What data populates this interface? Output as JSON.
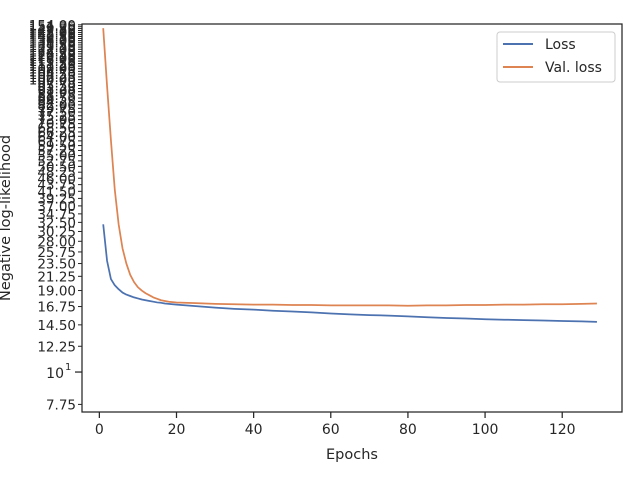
{
  "chart_data": {
    "type": "line",
    "xlabel": "Epochs",
    "ylabel": "Negative log-likelihood",
    "y_scale": "log",
    "xlim": [
      -4.5,
      135.5
    ],
    "ylim": [
      7.3,
      155
    ],
    "x_ticks": [
      0,
      20,
      40,
      60,
      80,
      100,
      120
    ],
    "y_ticks_major": [
      {
        "value": 10,
        "label": "10",
        "exp": "1"
      }
    ],
    "y_ticks_minor": [
      {
        "value": 7.75,
        "label": "7.75"
      },
      {
        "value": 12.25,
        "label": "12.25"
      },
      {
        "value": 14.5,
        "label": "14.50"
      },
      {
        "value": 16.75,
        "label": "16.75"
      },
      {
        "value": 19.0,
        "label": "19.00"
      },
      {
        "value": 21.25,
        "label": "21.25"
      },
      {
        "value": 23.5,
        "label": "23.50"
      },
      {
        "value": 25.75,
        "label": "25.75"
      },
      {
        "value": 28.0,
        "label": "28.00"
      },
      {
        "value": 30.25,
        "label": "30.25"
      },
      {
        "value": 32.5,
        "label": "32.50"
      },
      {
        "value": 34.75,
        "label": "34.75"
      },
      {
        "value": 37.0,
        "label": "37.00"
      },
      {
        "value": 39.25,
        "label": "39.25"
      },
      {
        "value": 41.5,
        "label": "41.50"
      },
      {
        "value": 43.75,
        "label": "43.75"
      },
      {
        "value": 46.0,
        "label": "46.00"
      },
      {
        "value": 48.25,
        "label": "48.25"
      },
      {
        "value": 50.5,
        "label": "50.50"
      },
      {
        "value": 52.75,
        "label": "52.75"
      },
      {
        "value": 55.0,
        "label": "55.00"
      },
      {
        "value": 57.25,
        "label": "57.25"
      },
      {
        "value": 59.5,
        "label": "59.50"
      },
      {
        "value": 61.75,
        "label": "61.75"
      },
      {
        "value": 64.0,
        "label": "64.00"
      },
      {
        "value": 66.25,
        "label": "66.25"
      },
      {
        "value": 68.5,
        "label": "68.50"
      },
      {
        "value": 70.75,
        "label": "70.75"
      },
      {
        "value": 73.0,
        "label": "73.00"
      },
      {
        "value": 75.25,
        "label": "75.25"
      },
      {
        "value": 77.5,
        "label": "77.50"
      },
      {
        "value": 79.75,
        "label": "79.75"
      },
      {
        "value": 82.0,
        "label": "82.00"
      },
      {
        "value": 84.25,
        "label": "84.25"
      },
      {
        "value": 86.5,
        "label": "86.50"
      },
      {
        "value": 88.75,
        "label": "88.75"
      },
      {
        "value": 91.0,
        "label": "91.00"
      },
      {
        "value": 93.25,
        "label": "93.25"
      },
      {
        "value": 95.5,
        "label": "95.50"
      },
      {
        "value": 97.75,
        "label": "97.75"
      },
      {
        "value": 100.0,
        "label": "100.00"
      },
      {
        "value": 102.25,
        "label": "102.25"
      },
      {
        "value": 104.5,
        "label": "104.50"
      },
      {
        "value": 106.75,
        "label": "106.75"
      },
      {
        "value": 109.0,
        "label": "109.00"
      },
      {
        "value": 111.25,
        "label": "111.25"
      },
      {
        "value": 113.5,
        "label": "113.50"
      },
      {
        "value": 115.75,
        "label": "115.75"
      },
      {
        "value": 118.0,
        "label": "118.00"
      },
      {
        "value": 120.25,
        "label": "120.25"
      },
      {
        "value": 122.5,
        "label": "122.50"
      },
      {
        "value": 124.75,
        "label": "124.75"
      },
      {
        "value": 127.0,
        "label": "127.00"
      },
      {
        "value": 129.25,
        "label": "129.25"
      },
      {
        "value": 131.5,
        "label": "131.50"
      },
      {
        "value": 133.75,
        "label": "133.75"
      },
      {
        "value": 136.0,
        "label": "136.00"
      },
      {
        "value": 138.25,
        "label": "138.25"
      },
      {
        "value": 140.5,
        "label": "140.50"
      },
      {
        "value": 142.75,
        "label": "142.75"
      },
      {
        "value": 145.0,
        "label": "145.00"
      },
      {
        "value": 147.25,
        "label": "147.25"
      },
      {
        "value": 149.5,
        "label": "149.50"
      },
      {
        "value": 151.75,
        "label": "151.75"
      },
      {
        "value": 154.0,
        "label": "154.00"
      }
    ],
    "grid": false,
    "legend_position": "upper right",
    "series": [
      {
        "name": "Loss",
        "color": "#4c72b0",
        "x": [
          1,
          2,
          3,
          4,
          5,
          6,
          7,
          8,
          9,
          10,
          11,
          12,
          13,
          14,
          15,
          16,
          17,
          18,
          19,
          20,
          25,
          30,
          35,
          40,
          45,
          50,
          55,
          60,
          65,
          70,
          75,
          80,
          85,
          90,
          95,
          100,
          105,
          110,
          115,
          120,
          125,
          129
        ],
        "y": [
          32.0,
          24.0,
          20.8,
          19.8,
          19.2,
          18.7,
          18.4,
          18.2,
          18.0,
          17.85,
          17.7,
          17.6,
          17.5,
          17.4,
          17.3,
          17.25,
          17.15,
          17.1,
          17.05,
          17.0,
          16.8,
          16.6,
          16.45,
          16.35,
          16.2,
          16.1,
          16.0,
          15.85,
          15.75,
          15.65,
          15.6,
          15.5,
          15.4,
          15.3,
          15.25,
          15.15,
          15.1,
          15.05,
          15.0,
          14.95,
          14.9,
          14.85
        ]
      },
      {
        "name": "Val. loss",
        "color": "#dd8452",
        "x": [
          1,
          2,
          3,
          4,
          5,
          6,
          7,
          8,
          9,
          10,
          11,
          12,
          13,
          14,
          15,
          16,
          17,
          18,
          19,
          20,
          25,
          30,
          35,
          40,
          45,
          50,
          55,
          60,
          65,
          70,
          75,
          80,
          85,
          90,
          95,
          100,
          105,
          110,
          115,
          120,
          125,
          129
        ],
        "y": [
          150.0,
          95.0,
          62.0,
          42.0,
          32.0,
          26.5,
          23.5,
          21.5,
          20.3,
          19.5,
          19.0,
          18.6,
          18.3,
          18.0,
          17.8,
          17.6,
          17.5,
          17.4,
          17.35,
          17.3,
          17.2,
          17.1,
          17.05,
          17.0,
          17.0,
          16.95,
          16.95,
          16.9,
          16.9,
          16.9,
          16.9,
          16.85,
          16.9,
          16.9,
          16.95,
          16.95,
          17.0,
          17.0,
          17.05,
          17.05,
          17.1,
          17.15
        ]
      }
    ]
  }
}
